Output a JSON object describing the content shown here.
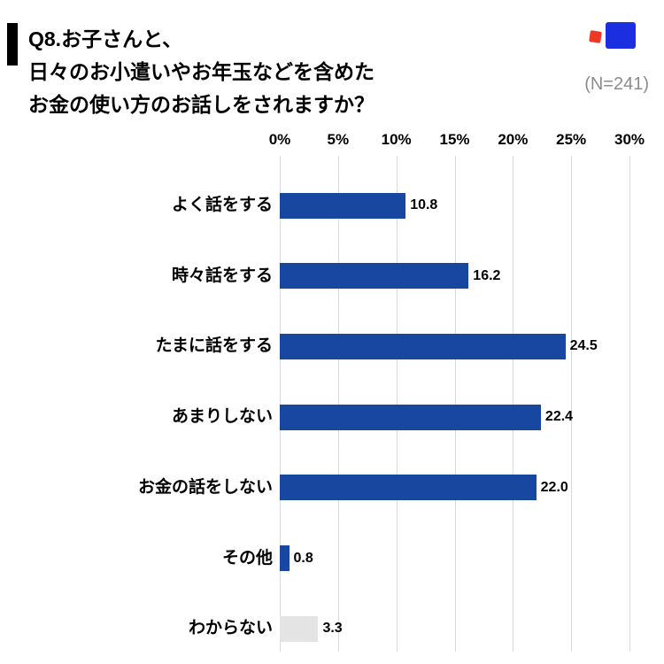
{
  "header": {
    "title_lines": [
      "Q8.お子さんと、",
      "日々のお小遣いやお年玉などを含めた",
      "お金の使い方のお話しをされますか？"
    ],
    "sample_label": "(N=241)"
  },
  "chart_data": {
    "type": "bar",
    "orientation": "horizontal",
    "title": "Q8.お子さんと、日々のお小遣いやお年玉などを含めたお金の使い方のお話しをされますか？",
    "categories": [
      "よく話をする",
      "時々話をする",
      "たまに話をする",
      "あまりしない",
      "お金の話をしない",
      "その他",
      "わからない"
    ],
    "values": [
      10.8,
      16.2,
      24.5,
      22.4,
      22.0,
      0.8,
      3.3
    ],
    "value_labels": [
      "10.8",
      "16.2",
      "24.5",
      "22.4",
      "22.0",
      "0.8",
      "3.3"
    ],
    "xlim": [
      0,
      30
    ],
    "x_ticks": [
      0,
      5,
      10,
      15,
      20,
      25,
      30
    ],
    "x_tick_labels": [
      "0%",
      "5%",
      "10%",
      "15%",
      "20%",
      "25%",
      "30%"
    ],
    "grid": true,
    "bar_color": "#17479e",
    "muted_bar_color": "#e4e4e4",
    "muted_categories": [
      "わからない"
    ],
    "gridline_color": "#d9d9d9",
    "sample_size": 241
  }
}
